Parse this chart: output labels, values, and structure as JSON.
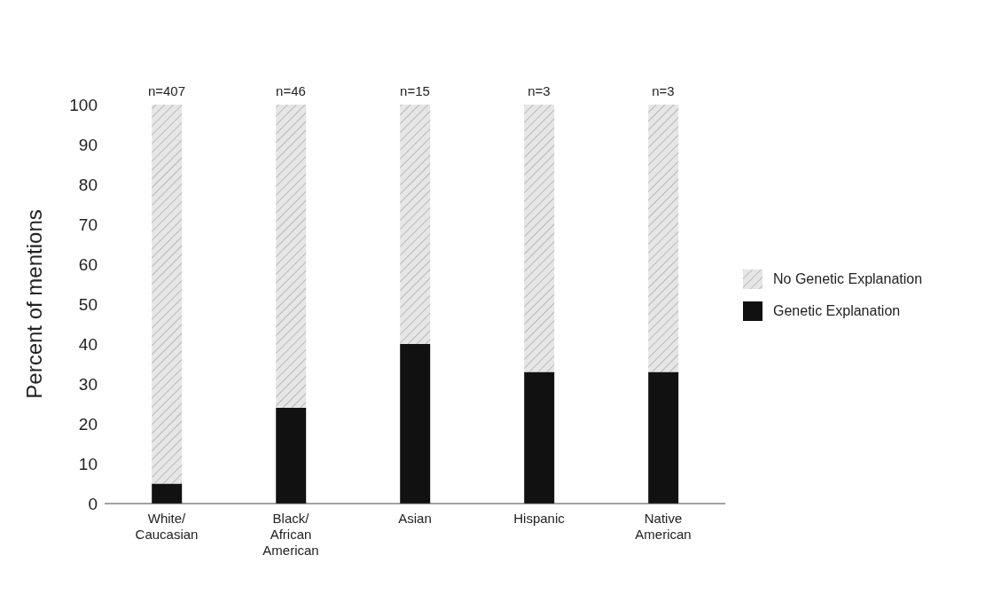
{
  "chart_data": {
    "type": "bar",
    "stacked": true,
    "categories": [
      "White/Caucasian",
      "Black/African American",
      "Asian",
      "Hispanic",
      "Native American"
    ],
    "series": [
      {
        "name": "Genetic Explanation",
        "color": "#111111",
        "values": [
          5,
          24,
          40,
          33,
          33
        ]
      },
      {
        "name": "No Genetic Explanation",
        "color": "#e6e6e6",
        "values": [
          95,
          76,
          60,
          67,
          67
        ]
      }
    ],
    "ylabel": "Percent of mentions",
    "ylim": [
      0,
      100
    ],
    "yticks": [
      0,
      10,
      20,
      30,
      40,
      50,
      60,
      70,
      80,
      90,
      100
    ],
    "grid": false,
    "legend": "right",
    "annotations": [
      {
        "text": "n=407",
        "x": "White/Caucasian",
        "y": 100
      },
      {
        "text": "n=46",
        "x": "Black/African American",
        "y": 100
      },
      {
        "text": "n=15",
        "x": "Asian",
        "y": 100
      },
      {
        "text": "n=3",
        "x": "Hispanic",
        "y": 100
      },
      {
        "text": "n=3",
        "x": "Native American",
        "y": 100
      }
    ]
  }
}
